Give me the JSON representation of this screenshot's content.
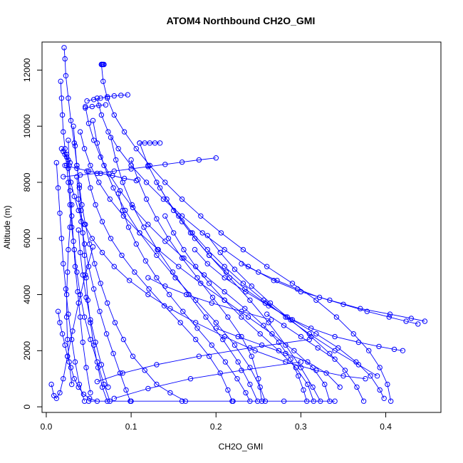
{
  "chart_data": {
    "type": "scatter",
    "title": "ATOM4 Northbound CH2O_GMI",
    "xlabel": "CH2O_GMI",
    "ylabel": "Altitude (m)",
    "xlim": [
      -0.005,
      0.465
    ],
    "ylim": [
      -200,
      13000
    ],
    "xticks": [
      0.0,
      0.1,
      0.2,
      0.3,
      0.4
    ],
    "xtick_labels": [
      "0.0",
      "0.1",
      "0.2",
      "0.3",
      "0.4"
    ],
    "yticks": [
      0,
      2000,
      4000,
      6000,
      8000,
      10000,
      12000
    ],
    "ytick_labels": [
      "0",
      "2000",
      "4000",
      "6000",
      "8000",
      "10000",
      "12000"
    ],
    "grid": false,
    "legend": "none",
    "color": "#0000ff",
    "marker": "open-circle",
    "connected": true,
    "series": [
      {
        "x": [
          0.021,
          0.022,
          0.023,
          0.026,
          0.029,
          0.033,
          0.036,
          0.039,
          0.041,
          0.043,
          0.045,
          0.047,
          0.049,
          0.052,
          0.056,
          0.061,
          0.066,
          0.072
        ],
        "y": [
          12800,
          12400,
          11800,
          11000,
          10200,
          9400,
          8600,
          7800,
          7000,
          6200,
          5400,
          4600,
          3800,
          3000,
          2200,
          1400,
          700,
          200
        ]
      },
      {
        "x": [
          0.017,
          0.018,
          0.019,
          0.02,
          0.022,
          0.024,
          0.026,
          0.028,
          0.03,
          0.033,
          0.036,
          0.04,
          0.045,
          0.052,
          0.06,
          0.068,
          0.075
        ],
        "y": [
          11600,
          11000,
          10400,
          9800,
          9200,
          8600,
          8000,
          7200,
          6400,
          5600,
          4800,
          4000,
          3200,
          2400,
          1600,
          800,
          200
        ]
      },
      {
        "x": [
          0.065,
          0.067,
          0.072,
          0.08,
          0.092,
          0.106,
          0.122,
          0.14,
          0.16,
          0.182,
          0.206,
          0.232,
          0.26,
          0.29,
          0.318,
          0.342,
          0.362,
          0.38,
          0.393,
          0.402,
          0.406
        ],
        "y": [
          12200,
          11600,
          11000,
          10400,
          9800,
          9200,
          8600,
          8000,
          7400,
          6800,
          6200,
          5600,
          5000,
          4400,
          3800,
          3200,
          2600,
          2000,
          1400,
          800,
          200
        ]
      },
      {
        "x": [
          0.06,
          0.065,
          0.073,
          0.085,
          0.1,
          0.118,
          0.138,
          0.16,
          0.184,
          0.21,
          0.238,
          0.268,
          0.3,
          0.334,
          0.37,
          0.405,
          0.43,
          0.446
        ],
        "y": [
          11000,
          10400,
          9800,
          9200,
          8600,
          8000,
          7400,
          6800,
          6200,
          5600,
          5000,
          4500,
          4100,
          3800,
          3500,
          3300,
          3150,
          3050
        ]
      },
      {
        "x": [
          0.046,
          0.05,
          0.056,
          0.064,
          0.074,
          0.087,
          0.102,
          0.12,
          0.14,
          0.162,
          0.186,
          0.21,
          0.234,
          0.256,
          0.274,
          0.288,
          0.297,
          0.303,
          0.307
        ],
        "y": [
          10700,
          10100,
          9500,
          8900,
          8300,
          7700,
          7100,
          6500,
          5900,
          5300,
          4700,
          4100,
          3500,
          2900,
          2300,
          1700,
          1100,
          600,
          200
        ]
      },
      {
        "x": [
          0.055,
          0.06,
          0.068,
          0.079,
          0.093,
          0.11,
          0.13,
          0.152,
          0.176,
          0.2,
          0.222,
          0.24,
          0.252,
          0.258
        ],
        "y": [
          10200,
          9400,
          8600,
          7800,
          7000,
          6200,
          5400,
          4600,
          3800,
          3000,
          2200,
          1400,
          700,
          200
        ]
      },
      {
        "x": [
          0.076,
          0.082,
          0.09,
          0.101,
          0.115,
          0.131,
          0.149,
          0.168,
          0.188,
          0.208,
          0.226,
          0.24,
          0.249
        ],
        "y": [
          9600,
          8800,
          8000,
          7200,
          6400,
          5600,
          4800,
          4000,
          3200,
          2400,
          1600,
          800,
          200
        ]
      },
      {
        "x": [
          0.11,
          0.12,
          0.134,
          0.15,
          0.17,
          0.192,
          0.216,
          0.24,
          0.262,
          0.282,
          0.3,
          0.314,
          0.323
        ],
        "y": [
          9400,
          8600,
          7800,
          7000,
          6200,
          5400,
          4600,
          3800,
          3000,
          2200,
          1400,
          700,
          200
        ]
      },
      {
        "x": [
          0.032,
          0.034,
          0.036,
          0.039,
          0.042,
          0.046,
          0.051,
          0.057,
          0.064,
          0.072,
          0.081,
          0.091,
          0.102,
          0.116,
          0.13,
          0.146,
          0.164
        ],
        "y": [
          10000,
          9300,
          8600,
          7900,
          7200,
          6500,
          5800,
          5100,
          4400,
          3700,
          3000,
          2400,
          1800,
          1300,
          800,
          500,
          200
        ]
      },
      {
        "x": [
          0.04,
          0.045,
          0.052,
          0.062,
          0.075,
          0.091,
          0.11,
          0.132,
          0.156,
          0.182,
          0.21,
          0.238,
          0.266,
          0.292,
          0.314,
          0.328,
          0.334
        ],
        "y": [
          9800,
          9200,
          8600,
          8000,
          7400,
          6800,
          6200,
          5600,
          5000,
          4400,
          3800,
          3200,
          2600,
          2000,
          1400,
          800,
          200
        ]
      },
      {
        "x": [
          0.024,
          0.026,
          0.029,
          0.033,
          0.038,
          0.045,
          0.054,
          0.066,
          0.08,
          0.098,
          0.12,
          0.146,
          0.176,
          0.21,
          0.246,
          0.282,
          0.318,
          0.35,
          0.376
        ],
        "y": [
          9000,
          8500,
          8000,
          7500,
          7000,
          6500,
          6000,
          5500,
          5000,
          4500,
          4000,
          3500,
          3000,
          2500,
          2000,
          1600,
          1300,
          1100,
          1000
        ]
      },
      {
        "x": [
          0.048,
          0.052,
          0.058,
          0.066,
          0.076,
          0.089,
          0.104,
          0.121,
          0.139,
          0.158,
          0.176,
          0.192,
          0.205,
          0.214,
          0.219
        ],
        "y": [
          8400,
          7800,
          7200,
          6600,
          6000,
          5400,
          4800,
          4200,
          3600,
          3000,
          2400,
          1800,
          1200,
          600,
          200
        ]
      },
      {
        "x": [
          0.1,
          0.108,
          0.118,
          0.13,
          0.144,
          0.16,
          0.178,
          0.196,
          0.214,
          0.23,
          0.242,
          0.25,
          0.254
        ],
        "y": [
          8800,
          8100,
          7400,
          6700,
          6000,
          5300,
          4600,
          3900,
          3200,
          2500,
          1800,
          1000,
          200
        ]
      },
      {
        "x": [
          0.13,
          0.142,
          0.156,
          0.172,
          0.19,
          0.21,
          0.232,
          0.256,
          0.282,
          0.31,
          0.34,
          0.368,
          0.39
        ],
        "y": [
          8000,
          7400,
          6800,
          6200,
          5600,
          5000,
          4400,
          3800,
          3200,
          2600,
          2000,
          1500,
          1100
        ]
      },
      {
        "x": [
          0.085,
          0.09,
          0.097,
          0.106,
          0.117,
          0.13,
          0.145,
          0.161,
          0.178,
          0.195,
          0.211,
          0.225,
          0.235,
          0.24
        ],
        "y": [
          7600,
          7000,
          6400,
          5800,
          5200,
          4600,
          4000,
          3400,
          2800,
          2200,
          1600,
          1000,
          500,
          200
        ]
      },
      {
        "x": [
          0.036,
          0.038,
          0.041,
          0.045,
          0.05,
          0.056,
          0.063,
          0.071,
          0.079,
          0.087,
          0.094,
          0.099
        ],
        "y": [
          8200,
          7400,
          6600,
          5800,
          5000,
          4200,
          3400,
          2600,
          1900,
          1200,
          600,
          200
        ]
      },
      {
        "x": [
          0.14,
          0.15,
          0.162,
          0.176,
          0.192,
          0.21,
          0.23,
          0.252,
          0.274,
          0.294,
          0.308,
          0.315
        ],
        "y": [
          6800,
          6200,
          5600,
          5000,
          4400,
          3800,
          3200,
          2600,
          2000,
          1400,
          800,
          200
        ]
      },
      {
        "x": [
          0.16,
          0.175,
          0.192,
          0.212,
          0.234,
          0.258,
          0.284,
          0.312,
          0.34,
          0.368,
          0.392,
          0.41,
          0.42
        ],
        "y": [
          6600,
          6000,
          5400,
          4800,
          4200,
          3700,
          3200,
          2800,
          2500,
          2300,
          2150,
          2050,
          2000
        ]
      },
      {
        "x": [
          0.19,
          0.205,
          0.222,
          0.242,
          0.264,
          0.288,
          0.312,
          0.334,
          0.352,
          0.366,
          0.374
        ],
        "y": [
          6100,
          5500,
          4900,
          4300,
          3700,
          3100,
          2500,
          1900,
          1300,
          700,
          200
        ]
      },
      {
        "x": [
          0.175,
          0.19,
          0.21,
          0.235,
          0.262,
          0.29,
          0.318,
          0.344,
          0.365,
          0.382,
          0.393,
          0.398
        ],
        "y": [
          5600,
          5100,
          4600,
          4100,
          3600,
          3100,
          2600,
          2100,
          1600,
          1100,
          600,
          300
        ]
      },
      {
        "x": [
          0.23,
          0.25,
          0.272,
          0.296,
          0.322,
          0.35,
          0.378,
          0.404,
          0.424,
          0.438
        ],
        "y": [
          5100,
          4800,
          4500,
          4200,
          3900,
          3650,
          3400,
          3200,
          3050,
          2950
        ]
      },
      {
        "x": [
          0.012,
          0.014,
          0.016,
          0.018,
          0.02,
          0.023,
          0.026,
          0.03,
          0.034,
          0.039,
          0.045
        ],
        "y": [
          8700,
          7800,
          6900,
          6000,
          5100,
          4200,
          3300,
          2400,
          1600,
          800,
          200
        ]
      },
      {
        "x": [
          0.026,
          0.027,
          0.028,
          0.03,
          0.032,
          0.034,
          0.037,
          0.04,
          0.043,
          0.047,
          0.052
        ],
        "y": [
          9500,
          8600,
          7700,
          6800,
          5900,
          5000,
          4100,
          3200,
          2300,
          1400,
          500
        ]
      },
      {
        "x": [
          0.006,
          0.009,
          0.012,
          0.016,
          0.02,
          0.025,
          0.031,
          0.038,
          0.046,
          0.055
        ],
        "y": [
          800,
          400,
          300,
          500,
          1000,
          1800,
          2700,
          3700,
          4700,
          5700
        ]
      },
      {
        "x": [
          0.014,
          0.016,
          0.019,
          0.022,
          0.025,
          0.029,
          0.033,
          0.038,
          0.044,
          0.051,
          0.06
        ],
        "y": [
          3400,
          3000,
          2600,
          2200,
          1800,
          1400,
          1000,
          700,
          450,
          300,
          200
        ]
      },
      {
        "x": [
          0.02,
          0.04,
          0.06,
          0.08,
          0.1,
          0.12,
          0.14,
          0.16,
          0.18,
          0.2
        ],
        "y": [
          8200,
          8260,
          8320,
          8400,
          8480,
          8560,
          8640,
          8720,
          8800,
          8870
        ]
      },
      {
        "x": [
          0.022,
          0.036,
          0.05,
          0.064,
          0.078,
          0.092,
          0.106
        ],
        "y": [
          8600,
          8500,
          8400,
          8320,
          8240,
          8140,
          8060
        ]
      },
      {
        "x": [
          0.048,
          0.056,
          0.064,
          0.072,
          0.08,
          0.088,
          0.096
        ],
        "y": [
          10900,
          10950,
          11000,
          11050,
          11080,
          11100,
          11120
        ]
      },
      {
        "x": [
          0.046,
          0.054,
          0.062,
          0.07
        ],
        "y": [
          10650,
          10700,
          10740,
          10760
        ]
      },
      {
        "x": [
          0.11,
          0.116,
          0.122,
          0.128,
          0.134
        ],
        "y": [
          9400,
          9400,
          9400,
          9400,
          9400
        ]
      },
      {
        "x": [
          0.065,
          0.066,
          0.067,
          0.068
        ],
        "y": [
          12200,
          12200,
          12200,
          12200
        ]
      },
      {
        "x": [
          0.018,
          0.02,
          0.022,
          0.024,
          0.026,
          0.028
        ],
        "y": [
          9200,
          9100,
          9000,
          8900,
          8800,
          8700
        ]
      },
      {
        "x": [
          0.05,
          0.1,
          0.16,
          0.22,
          0.28,
          0.34
        ],
        "y": [
          200,
          200,
          200,
          200,
          200,
          200
        ]
      },
      {
        "x": [
          0.06,
          0.09,
          0.13,
          0.18,
          0.24,
          0.31
        ],
        "y": [
          900,
          1200,
          1500,
          1800,
          2100,
          2400
        ]
      },
      {
        "x": [
          0.08,
          0.12,
          0.17,
          0.23,
          0.3
        ],
        "y": [
          300,
          650,
          1000,
          1300,
          1600
        ]
      },
      {
        "x": [
          0.03,
          0.028,
          0.026,
          0.025,
          0.024,
          0.024,
          0.025,
          0.027,
          0.03
        ],
        "y": [
          7200,
          6400,
          5600,
          4800,
          4000,
          3200,
          2400,
          1600,
          800
        ]
      },
      {
        "x": [
          0.038,
          0.04,
          0.043,
          0.047,
          0.052,
          0.058,
          0.065,
          0.073
        ],
        "y": [
          6300,
          5500,
          4700,
          3900,
          3100,
          2300,
          1500,
          700
        ]
      },
      {
        "x": [
          0.12,
          0.14,
          0.165,
          0.195,
          0.23,
          0.265
        ],
        "y": [
          4600,
          4300,
          4000,
          3700,
          3400,
          3100
        ]
      },
      {
        "x": [
          0.2,
          0.226,
          0.254,
          0.282,
          0.308,
          0.33,
          0.346
        ],
        "y": [
          2800,
          2500,
          2200,
          1900,
          1600,
          1200,
          700
        ]
      },
      {
        "x": [
          0.26,
          0.28,
          0.3,
          0.32,
          0.34
        ],
        "y": [
          3300,
          2900,
          2500,
          2100,
          1700
        ]
      }
    ]
  }
}
